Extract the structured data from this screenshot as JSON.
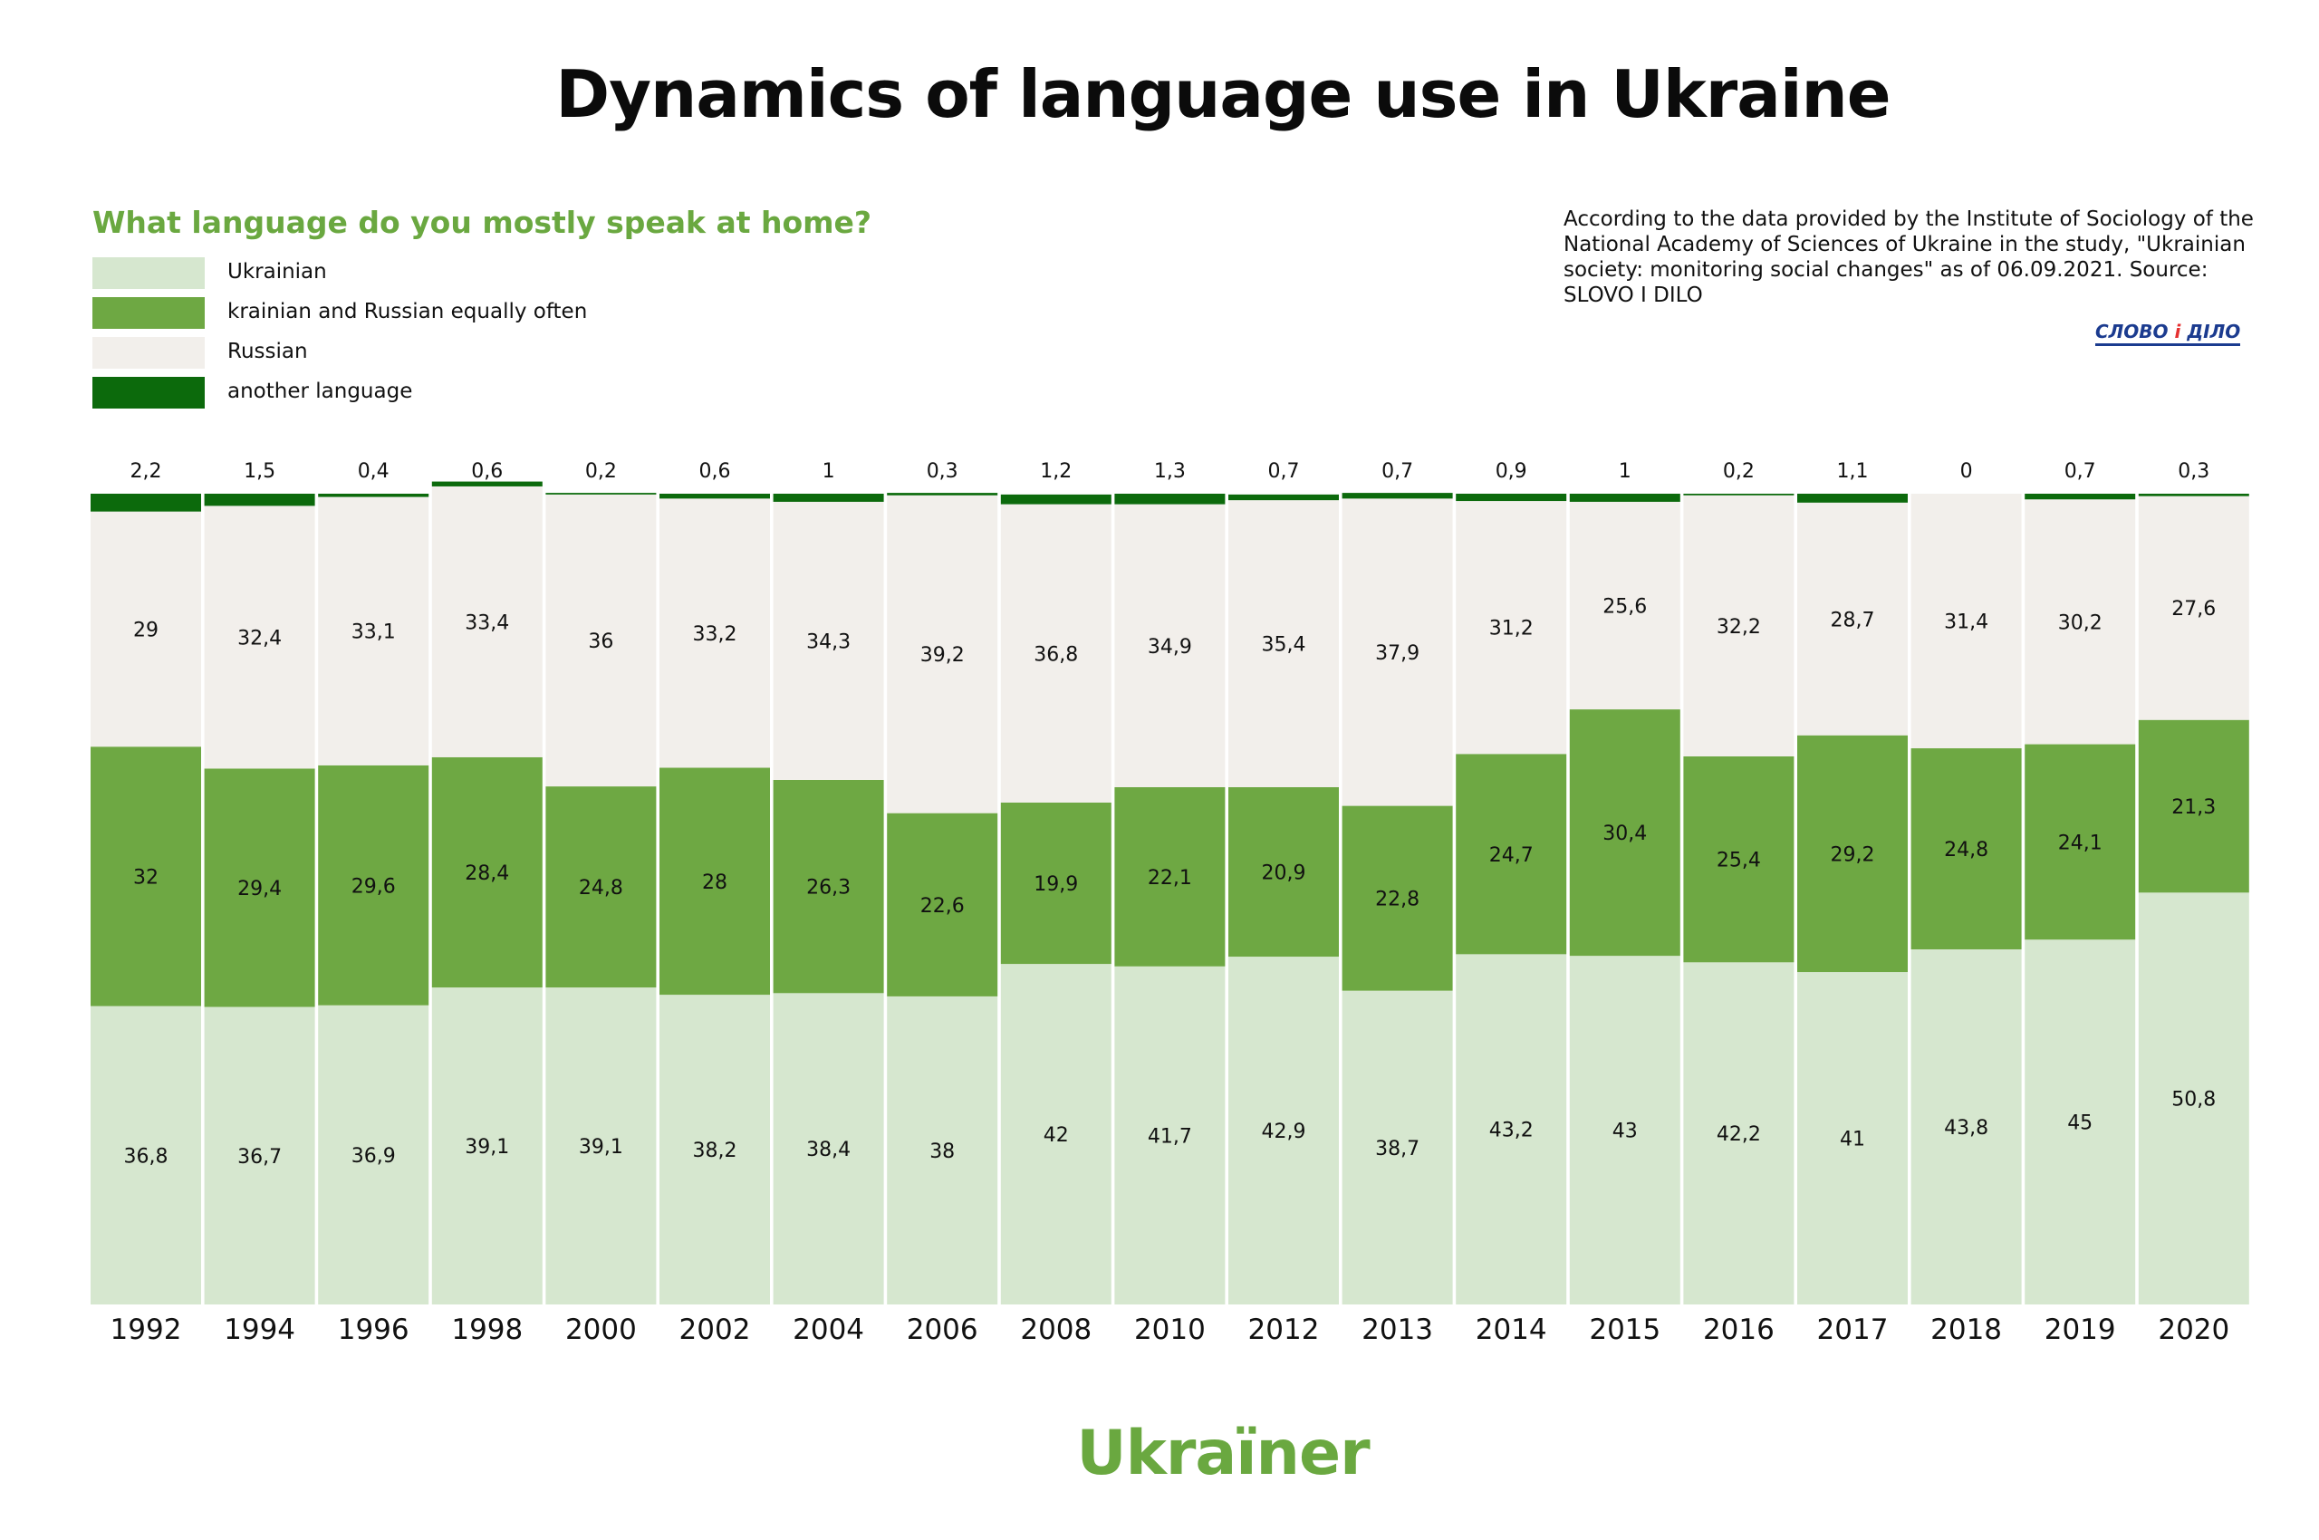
{
  "title": "Dynamics of language use in Ukraine",
  "question": "What language do you mostly speak at home?",
  "source_note": "According to the data provided by the Institute of Sociology of the National Academy of Sciences of Ukraine in the study, \"Ukrainian society: monitoring social changes\" as of 06.09.2021. Source: SLOVO I DILO",
  "logo_text_left": "СЛОВО",
  "logo_text_mid": "і",
  "logo_text_right": "ДІЛО",
  "brand": "Ukraïner",
  "legend": [
    {
      "label": "Ukrainian",
      "color": "#d6e7cf"
    },
    {
      "label": "krainian and Russian equally often",
      "color": "#6ea843"
    },
    {
      "label": "Russian",
      "color": "#f2efeb"
    },
    {
      "label": "another language",
      "color": "#0c6a0c"
    }
  ],
  "chart_data": {
    "type": "bar",
    "stacked": true,
    "categories": [
      "1992",
      "1994",
      "1996",
      "1998",
      "2000",
      "2002",
      "2004",
      "2006",
      "2008",
      "2010",
      "2012",
      "2013",
      "2014",
      "2015",
      "2016",
      "2017",
      "2018",
      "2019",
      "2020"
    ],
    "series": [
      {
        "name": "Ukrainian",
        "color": "#d6e7cf",
        "values": [
          36.8,
          36.7,
          36.9,
          39.1,
          39.1,
          38.2,
          38.4,
          38,
          42,
          41.7,
          42.9,
          38.7,
          43.2,
          43,
          42.2,
          41,
          43.8,
          45,
          50.8
        ],
        "labels": [
          "36,8",
          "36,7",
          "36,9",
          "39,1",
          "39,1",
          "38,2",
          "38,4",
          "38",
          "42",
          "41,7",
          "42,9",
          "38,7",
          "43,2",
          "43",
          "42,2",
          "41",
          "43,8",
          "45",
          "50,8"
        ]
      },
      {
        "name": "krainian and Russian equally often",
        "color": "#6ea843",
        "values": [
          32,
          29.4,
          29.6,
          28.4,
          24.8,
          28,
          26.3,
          22.6,
          19.9,
          22.1,
          20.9,
          22.8,
          24.7,
          30.4,
          25.4,
          29.2,
          24.8,
          24.1,
          21.3
        ],
        "labels": [
          "32",
          "29,4",
          "29,6",
          "28,4",
          "24,8",
          "28",
          "26,3",
          "22,6",
          "19,9",
          "22,1",
          "20,9",
          "22,8",
          "24,7",
          "30,4",
          "25,4",
          "29,2",
          "24,8",
          "24,1",
          "21,3"
        ]
      },
      {
        "name": "Russian",
        "color": "#f2efeb",
        "values": [
          29,
          32.4,
          33.1,
          33.4,
          36,
          33.2,
          34.3,
          39.2,
          36.8,
          34.9,
          35.4,
          37.9,
          31.2,
          25.6,
          32.2,
          28.7,
          31.4,
          30.2,
          27.6
        ],
        "labels": [
          "29",
          "32,4",
          "33,1",
          "33,4",
          "36",
          "33,2",
          "34,3",
          "39,2",
          "36,8",
          "34,9",
          "35,4",
          "37,9",
          "31,2",
          "25,6",
          "32,2",
          "28,7",
          "31,4",
          "30,2",
          "27,6"
        ]
      },
      {
        "name": "another language",
        "color": "#0c6a0c",
        "values": [
          2.2,
          1.5,
          0.4,
          0.6,
          0.2,
          0.6,
          1,
          0.3,
          1.2,
          1.3,
          0.7,
          0.7,
          0.9,
          1,
          0.2,
          1.1,
          0,
          0.7,
          0.3
        ],
        "labels": [
          "2,2",
          "1,5",
          "0,4",
          "0,6",
          "0,2",
          "0,6",
          "1",
          "0,3",
          "1,2",
          "1,3",
          "0,7",
          "0,7",
          "0,9",
          "1",
          "0,2",
          "1,1",
          "0",
          "0,7",
          "0,3"
        ]
      }
    ],
    "ylim": [
      0,
      100
    ],
    "grid": false,
    "legend_position": "top-left"
  }
}
